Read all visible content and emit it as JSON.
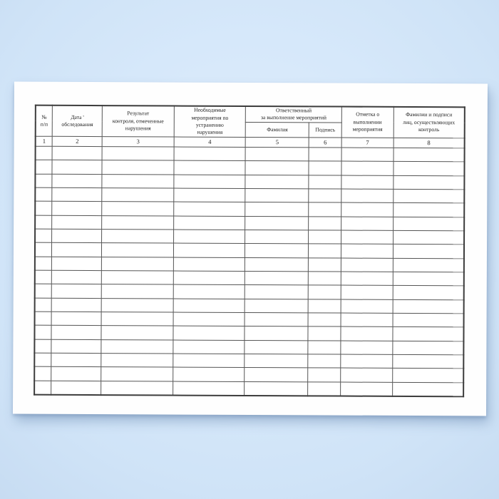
{
  "document": {
    "kind": "inspection-log-form-page",
    "language": "ru"
  },
  "colors": {
    "background_blue": "#d3e7fa",
    "page_white": "#fefefe",
    "grid_line": "#555555",
    "outer_border": "#3c3c3c",
    "text": "#1a1a1a"
  },
  "table": {
    "headers": {
      "number": "№\nп/п",
      "date": "Дата '\nобследования",
      "result": "Результат\nконтроля, отмеченные\nнарушения",
      "measures": "Необходимые\nмероприятия по\nустранению\nнарушения",
      "responsible_group": "Ответственный\nза выполнение мероприятий",
      "surname": "Фамилия",
      "signature": "Подпись",
      "completion_mark": "Отметка о\nвыполнении\nмероприятия",
      "controllers": "Фамилии и подписи\nлиц, осуществляющих\nконтроль"
    },
    "index_row": [
      "1",
      "2",
      "3",
      "4",
      "5",
      "6",
      "7",
      "8"
    ],
    "empty_row_count": 18
  }
}
